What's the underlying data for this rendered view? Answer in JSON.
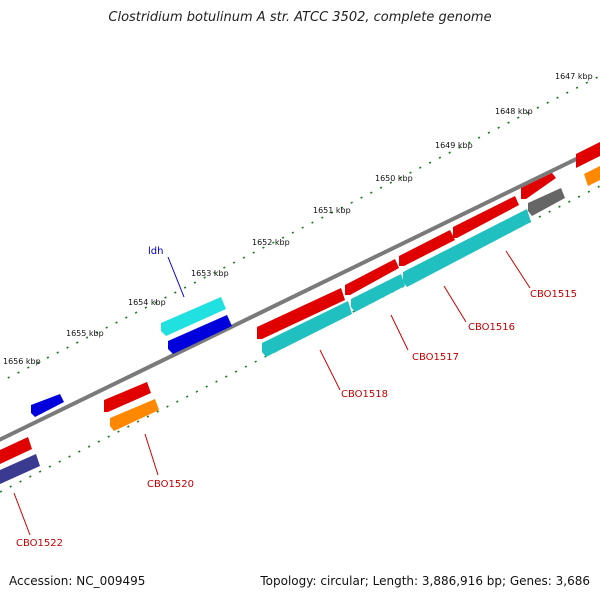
{
  "title": "Clostridium botulinum A str. ATCC 3502, complete genome",
  "footer": {
    "accession": "Accession: NC_009495",
    "topology": "Topology: circular; Length: 3,886,916 bp; Genes: 3,686"
  },
  "colors": {
    "backbone": "#808080",
    "tick": "#1a7a1a",
    "red": "#e00000",
    "cyan": "#20c0c0",
    "blue": "#0000dd",
    "orange": "#ff8800",
    "gray": "#666666",
    "slate": "#3a3a90",
    "label_red": "#c00000",
    "label_blue": "#0000cc"
  },
  "kbp_labels": [
    "1647 kbp",
    "1648 kbp",
    "1649 kbp",
    "1650 kbp",
    "1651 kbp",
    "1652 kbp",
    "1653 kbp",
    "1654 kbp",
    "1655 kbp",
    "1656 kbp"
  ],
  "gene_labels": [
    "ldh",
    "CBO1515",
    "CBO1516",
    "CBO1517",
    "CBO1518",
    "CBO1520",
    "CBO1522"
  ]
}
